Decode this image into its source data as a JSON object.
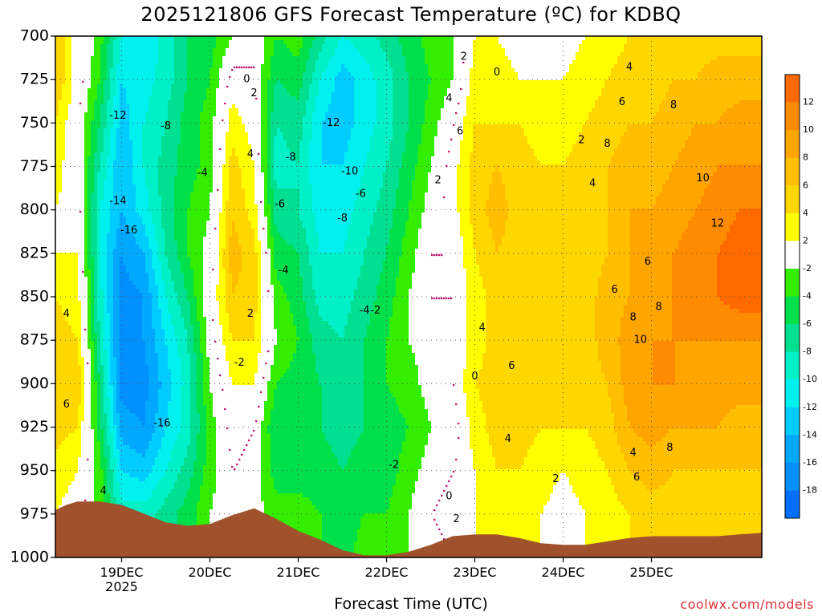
{
  "chart_data": {
    "type": "heatmap",
    "title": "2025121806 GFS Forecast Temperature (ºC) for KDBQ",
    "xlabel": "Forecast Time (UTC)",
    "credit": "coolwx.com/models",
    "pressure_levels_hPa": [
      700,
      725,
      750,
      775,
      800,
      825,
      850,
      875,
      900,
      925,
      950,
      975,
      1000
    ],
    "y_tick_labels": [
      "700",
      "725",
      "750",
      "775",
      "800",
      "825",
      "850",
      "875",
      "900",
      "925",
      "950",
      "975",
      "1000"
    ],
    "ylim": [
      700,
      1000
    ],
    "xlim_hours": [
      6,
      198
    ],
    "x_ticks": [
      {
        "label": "19DEC",
        "sublabel": "2025"
      },
      {
        "label": "20DEC",
        "sublabel": ""
      },
      {
        "label": "21DEC",
        "sublabel": ""
      },
      {
        "label": "22DEC",
        "sublabel": ""
      },
      {
        "label": "23DEC",
        "sublabel": ""
      },
      {
        "label": "24DEC",
        "sublabel": ""
      },
      {
        "label": "25DEC",
        "sublabel": ""
      }
    ],
    "x_tick_hours": [
      24,
      48,
      72,
      96,
      120,
      144,
      168
    ],
    "colorbar": {
      "ticks": [
        "12",
        "10",
        "8",
        "6",
        "4",
        "2",
        "-2",
        "-4",
        "-6",
        "-8",
        "-10",
        "-12",
        "-14",
        "-16",
        "-18"
      ],
      "bands": [
        {
          "min": 12,
          "max": 14,
          "color": "#ff6a00"
        },
        {
          "min": 10,
          "max": 12,
          "color": "#ff8c00"
        },
        {
          "min": 8,
          "max": 10,
          "color": "#ffa500"
        },
        {
          "min": 6,
          "max": 8,
          "color": "#ffbe00"
        },
        {
          "min": 4,
          "max": 6,
          "color": "#ffd700"
        },
        {
          "min": 2,
          "max": 4,
          "color": "#ffff00"
        },
        {
          "min": -2,
          "max": 2,
          "color": "#ffffff"
        },
        {
          "min": -4,
          "max": -2,
          "color": "#33ee00"
        },
        {
          "min": -6,
          "max": -4,
          "color": "#00e04a"
        },
        {
          "min": -8,
          "max": -6,
          "color": "#00e090"
        },
        {
          "min": -10,
          "max": -8,
          "color": "#00f0c8"
        },
        {
          "min": -12,
          "max": -10,
          "color": "#00f0f0"
        },
        {
          "min": -14,
          "max": -12,
          "color": "#00ccff"
        },
        {
          "min": -16,
          "max": -14,
          "color": "#00a8ff"
        },
        {
          "min": -18,
          "max": -16,
          "color": "#0090ff"
        },
        {
          "min": -20,
          "max": -18,
          "color": "#0070ff"
        }
      ]
    },
    "temperature_profiles": [
      {
        "hour": 6,
        "temps": [
          6,
          6,
          4,
          3,
          2,
          2,
          4,
          5,
          6,
          5,
          3,
          2,
          null
        ]
      },
      {
        "hour": 12,
        "temps": [
          1,
          1,
          0,
          0,
          1,
          2,
          3,
          4,
          6,
          4,
          2,
          1,
          null
        ]
      },
      {
        "hour": 18,
        "temps": [
          -3,
          -4,
          -6,
          -8,
          -10,
          -10,
          -9,
          -8,
          -6,
          -5,
          -3,
          null,
          null
        ]
      },
      {
        "hour": 24,
        "temps": [
          -10,
          -12,
          -13,
          -14,
          -14,
          -16,
          -17,
          -17,
          -17,
          -15,
          -12,
          -9,
          null
        ]
      },
      {
        "hour": 30,
        "temps": [
          -12,
          -11,
          -10,
          -10,
          -11,
          -14,
          -16,
          -16,
          -17,
          -16,
          -13,
          -9,
          null
        ]
      },
      {
        "hour": 36,
        "temps": [
          -9,
          -9,
          -8,
          -7,
          -7,
          -8,
          -10,
          -12,
          -13,
          -12,
          -10,
          -7,
          null
        ]
      },
      {
        "hour": 42,
        "temps": [
          -6,
          -6,
          -5,
          -5,
          -4,
          -4,
          -6,
          -8,
          -9,
          -9,
          -7,
          -5,
          null
        ]
      },
      {
        "hour": 48,
        "temps": [
          -5,
          -4,
          -3,
          -3,
          -2,
          -1,
          0,
          -1,
          -2,
          -3,
          -3,
          -2,
          null
        ]
      },
      {
        "hour": 54,
        "temps": [
          -2,
          1,
          3,
          5,
          6,
          7,
          6,
          4,
          2,
          1,
          0,
          null,
          null
        ]
      },
      {
        "hour": 60,
        "temps": [
          0,
          0,
          1,
          2,
          3,
          5,
          5,
          4,
          2,
          0,
          -1,
          null,
          null
        ]
      },
      {
        "hour": 66,
        "temps": [
          -4,
          -6,
          -8,
          -9,
          -7,
          -5,
          -3,
          -2,
          -4,
          -6,
          -5,
          -3,
          null
        ]
      },
      {
        "hour": 72,
        "temps": [
          -3,
          -5,
          -7,
          -8,
          -8,
          -6,
          -5,
          -4,
          -5,
          -6,
          -5,
          -3,
          null
        ]
      },
      {
        "hour": 78,
        "temps": [
          -7,
          -10,
          -12,
          -12,
          -11,
          -10,
          -9,
          -7,
          -6,
          -6,
          -5,
          -4,
          null
        ]
      },
      {
        "hour": 84,
        "temps": [
          -10,
          -13,
          -13,
          -12,
          -11,
          -10,
          -9,
          -8,
          -7,
          -7,
          -6,
          -5,
          null
        ]
      },
      {
        "hour": 90,
        "temps": [
          -9,
          -11,
          -11,
          -10,
          -9,
          -8,
          -7,
          -6,
          -6,
          -6,
          -5,
          -4,
          -3
        ]
      },
      {
        "hour": 96,
        "temps": [
          -7,
          -9,
          -9,
          -8,
          -7,
          -6,
          -5,
          -4,
          -4,
          -5,
          -5,
          -4,
          -3
        ]
      },
      {
        "hour": 102,
        "temps": [
          -5,
          -6,
          -6,
          -5,
          -4,
          -3,
          -2,
          -2,
          -3,
          -4,
          -3,
          -2,
          -2
        ]
      },
      {
        "hour": 108,
        "temps": [
          -3,
          -4,
          -3,
          -2,
          -1,
          0,
          0,
          -1,
          -1,
          -2,
          -1,
          0,
          -1
        ]
      },
      {
        "hour": 114,
        "temps": [
          -2,
          -2,
          0,
          1,
          1,
          0,
          0,
          0,
          0,
          -1,
          0,
          1,
          0
        ]
      },
      {
        "hour": 120,
        "temps": [
          2,
          3,
          4,
          5,
          5,
          4,
          3,
          3,
          4,
          3,
          2,
          2,
          null
        ]
      },
      {
        "hour": 126,
        "temps": [
          2,
          3,
          4,
          6,
          7,
          6,
          5,
          5,
          5,
          5,
          4,
          3,
          null
        ]
      },
      {
        "hour": 132,
        "temps": [
          1,
          2,
          4,
          5,
          5,
          5,
          5,
          6,
          6,
          5,
          4,
          2,
          null
        ]
      },
      {
        "hour": 138,
        "temps": [
          1,
          2,
          3,
          4,
          5,
          5,
          5,
          5,
          4,
          4,
          3,
          2,
          null
        ]
      },
      {
        "hour": 144,
        "temps": [
          1,
          2,
          3,
          4,
          4,
          4,
          5,
          5,
          5,
          4,
          2,
          1,
          null
        ]
      },
      {
        "hour": 150,
        "temps": [
          2,
          3,
          4,
          5,
          5,
          5,
          5,
          5,
          5,
          4,
          3,
          2,
          null
        ]
      },
      {
        "hour": 156,
        "temps": [
          3,
          4,
          5,
          6,
          6,
          6,
          7,
          7,
          6,
          5,
          4,
          3,
          null
        ]
      },
      {
        "hour": 162,
        "temps": [
          4,
          5,
          6,
          7,
          8,
          8,
          8,
          9,
          9,
          8,
          6,
          4,
          null
        ]
      },
      {
        "hour": 168,
        "temps": [
          4,
          5,
          6,
          7,
          8,
          9,
          9,
          10,
          10,
          9,
          7,
          5,
          null
        ]
      },
      {
        "hour": 174,
        "temps": [
          4,
          6,
          7,
          8,
          9,
          10,
          10,
          10,
          10,
          8,
          6,
          5,
          null
        ]
      },
      {
        "hour": 180,
        "temps": [
          5,
          6,
          8,
          9,
          10,
          11,
          11,
          10,
          9,
          8,
          6,
          5,
          null
        ]
      },
      {
        "hour": 186,
        "temps": [
          5,
          7,
          8,
          10,
          11,
          12,
          12,
          10,
          9,
          8,
          6,
          5,
          null
        ]
      },
      {
        "hour": 192,
        "temps": [
          5,
          7,
          9,
          10,
          12,
          13,
          13,
          10,
          9,
          7,
          6,
          5,
          null
        ]
      },
      {
        "hour": 198,
        "temps": [
          5,
          7,
          9,
          10,
          12,
          13,
          13,
          10,
          9,
          7,
          6,
          5,
          null
        ]
      }
    ],
    "surface_pressure_hPa": [
      {
        "hour": 6,
        "p": 973
      },
      {
        "hour": 9,
        "p": 970
      },
      {
        "hour": 12,
        "p": 968
      },
      {
        "hour": 18,
        "p": 968
      },
      {
        "hour": 24,
        "p": 970
      },
      {
        "hour": 30,
        "p": 975
      },
      {
        "hour": 36,
        "p": 980
      },
      {
        "hour": 42,
        "p": 982
      },
      {
        "hour": 48,
        "p": 981
      },
      {
        "hour": 54,
        "p": 976
      },
      {
        "hour": 60,
        "p": 972
      },
      {
        "hour": 66,
        "p": 978
      },
      {
        "hour": 72,
        "p": 985
      },
      {
        "hour": 78,
        "p": 990
      },
      {
        "hour": 84,
        "p": 996
      },
      {
        "hour": 90,
        "p": 999
      },
      {
        "hour": 96,
        "p": 999
      },
      {
        "hour": 102,
        "p": 997
      },
      {
        "hour": 108,
        "p": 993
      },
      {
        "hour": 114,
        "p": 988
      },
      {
        "hour": 120,
        "p": 987
      },
      {
        "hour": 126,
        "p": 987
      },
      {
        "hour": 132,
        "p": 989
      },
      {
        "hour": 138,
        "p": 992
      },
      {
        "hour": 144,
        "p": 993
      },
      {
        "hour": 150,
        "p": 993
      },
      {
        "hour": 156,
        "p": 991
      },
      {
        "hour": 162,
        "p": 989
      },
      {
        "hour": 168,
        "p": 988
      },
      {
        "hour": 174,
        "p": 988
      },
      {
        "hour": 180,
        "p": 988
      },
      {
        "hour": 186,
        "p": 988
      },
      {
        "hour": 192,
        "p": 987
      },
      {
        "hour": 198,
        "p": 986
      }
    ],
    "terrain_color": "#a0522d",
    "freezing_line_color": "#c0166f",
    "contour_labels": [
      {
        "hour": 36,
        "p": 752,
        "text": "-8"
      },
      {
        "hour": 23,
        "p": 746,
        "text": "-12"
      },
      {
        "hour": 23,
        "p": 795,
        "text": "-14"
      },
      {
        "hour": 26,
        "p": 812,
        "text": "-16"
      },
      {
        "hour": 35,
        "p": 923,
        "text": "-16"
      },
      {
        "hour": 46,
        "p": 779,
        "text": "-4"
      },
      {
        "hour": 58,
        "p": 725,
        "text": "0"
      },
      {
        "hour": 60,
        "p": 733,
        "text": "2"
      },
      {
        "hour": 59,
        "p": 768,
        "text": "4"
      },
      {
        "hour": 59,
        "p": 860,
        "text": "2"
      },
      {
        "hour": 56,
        "p": 888,
        "text": "-2"
      },
      {
        "hour": 67,
        "p": 797,
        "text": "-6"
      },
      {
        "hour": 70,
        "p": 770,
        "text": "-8"
      },
      {
        "hour": 68,
        "p": 835,
        "text": "-4"
      },
      {
        "hour": 81,
        "p": 750,
        "text": "-12"
      },
      {
        "hour": 86,
        "p": 778,
        "text": "-10"
      },
      {
        "hour": 89,
        "p": 791,
        "text": "-6"
      },
      {
        "hour": 84,
        "p": 805,
        "text": "-8"
      },
      {
        "hour": 90,
        "p": 858,
        "text": "-4"
      },
      {
        "hour": 93,
        "p": 858,
        "text": "-2"
      },
      {
        "hour": 98,
        "p": 947,
        "text": "-2"
      },
      {
        "hour": 110,
        "p": 783,
        "text": "2"
      },
      {
        "hour": 113,
        "p": 736,
        "text": "4"
      },
      {
        "hour": 117,
        "p": 712,
        "text": "2"
      },
      {
        "hour": 126,
        "p": 721,
        "text": "0"
      },
      {
        "hour": 116,
        "p": 755,
        "text": "6"
      },
      {
        "hour": 122,
        "p": 868,
        "text": "4"
      },
      {
        "hour": 130,
        "p": 890,
        "text": "6"
      },
      {
        "hour": 120,
        "p": 896,
        "text": "0"
      },
      {
        "hour": 113,
        "p": 965,
        "text": "0"
      },
      {
        "hour": 115,
        "p": 978,
        "text": "2"
      },
      {
        "hour": 129,
        "p": 932,
        "text": "4"
      },
      {
        "hour": 142,
        "p": 955,
        "text": "2"
      },
      {
        "hour": 149,
        "p": 760,
        "text": "2"
      },
      {
        "hour": 152,
        "p": 785,
        "text": "4"
      },
      {
        "hour": 162,
        "p": 718,
        "text": "4"
      },
      {
        "hour": 160,
        "p": 738,
        "text": "6"
      },
      {
        "hour": 156,
        "p": 762,
        "text": "8"
      },
      {
        "hour": 174,
        "p": 740,
        "text": "8"
      },
      {
        "hour": 182,
        "p": 782,
        "text": "10"
      },
      {
        "hour": 186,
        "p": 808,
        "text": "12"
      },
      {
        "hour": 167,
        "p": 830,
        "text": "6"
      },
      {
        "hour": 158,
        "p": 846,
        "text": "6"
      },
      {
        "hour": 163,
        "p": 862,
        "text": "8"
      },
      {
        "hour": 170,
        "p": 856,
        "text": "8"
      },
      {
        "hour": 165,
        "p": 875,
        "text": "10"
      },
      {
        "hour": 163,
        "p": 940,
        "text": "4"
      },
      {
        "hour": 164,
        "p": 954,
        "text": "6"
      },
      {
        "hour": 173,
        "p": 937,
        "text": "8"
      },
      {
        "hour": 9,
        "p": 860,
        "text": "4"
      },
      {
        "hour": 9,
        "p": 912,
        "text": "6"
      },
      {
        "hour": 19,
        "p": 962,
        "text": "4"
      }
    ]
  }
}
